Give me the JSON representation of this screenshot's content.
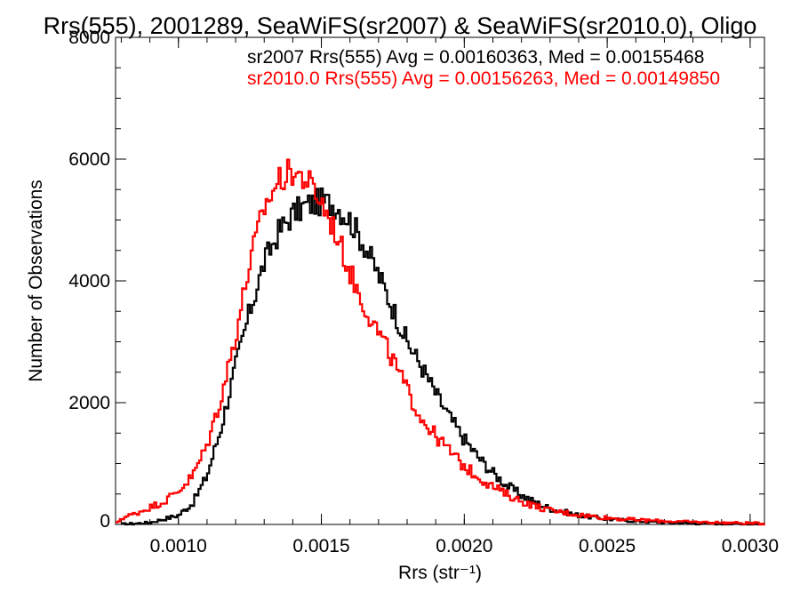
{
  "chart_data": {
    "type": "line",
    "title": "Rrs(555), 2001289, SeaWiFS(sr2007) & SeaWiFS(sr2010.0), Oligo",
    "xlabel": "Rrs (str⁻¹)",
    "ylabel": "Number of Observations",
    "xlim": [
      0.00078,
      0.00305
    ],
    "ylim": [
      0,
      8000
    ],
    "x_ticks": [
      {
        "value": 0.001,
        "label": "0.0010"
      },
      {
        "value": 0.0015,
        "label": "0.0015"
      },
      {
        "value": 0.002,
        "label": "0.0020"
      },
      {
        "value": 0.0025,
        "label": "0.0025"
      },
      {
        "value": 0.003,
        "label": "0.0030"
      }
    ],
    "y_ticks": [
      {
        "value": 0,
        "label": "0"
      },
      {
        "value": 2000,
        "label": "2000"
      },
      {
        "value": 4000,
        "label": "4000"
      },
      {
        "value": 6000,
        "label": "6000"
      },
      {
        "value": 8000,
        "label": "8000"
      }
    ],
    "grid": false,
    "legend_position": "top-right",
    "series": [
      {
        "name": "sr2007 Rrs(555) Avg = 0.00160363, Med = 0.00155468",
        "color": "#000000",
        "points": [
          [
            0.0008,
            0
          ],
          [
            0.0009,
            30
          ],
          [
            0.001,
            150
          ],
          [
            0.00105,
            350
          ],
          [
            0.0011,
            800
          ],
          [
            0.00115,
            1600
          ],
          [
            0.0012,
            2600
          ],
          [
            0.00125,
            3500
          ],
          [
            0.0013,
            4300
          ],
          [
            0.00135,
            4800
          ],
          [
            0.0014,
            5100
          ],
          [
            0.00145,
            5250
          ],
          [
            0.0015,
            5300
          ],
          [
            0.00155,
            5250
          ],
          [
            0.0016,
            5000
          ],
          [
            0.00165,
            4600
          ],
          [
            0.0017,
            4100
          ],
          [
            0.00175,
            3550
          ],
          [
            0.0018,
            3000
          ],
          [
            0.00185,
            2600
          ],
          [
            0.0019,
            2150
          ],
          [
            0.00195,
            1750
          ],
          [
            0.002,
            1400
          ],
          [
            0.00205,
            1100
          ],
          [
            0.0021,
            850
          ],
          [
            0.00215,
            640
          ],
          [
            0.0022,
            480
          ],
          [
            0.00225,
            360
          ],
          [
            0.0023,
            260
          ],
          [
            0.0024,
            150
          ],
          [
            0.0025,
            90
          ],
          [
            0.0026,
            55
          ],
          [
            0.0027,
            35
          ],
          [
            0.0028,
            20
          ],
          [
            0.0029,
            12
          ],
          [
            0.003,
            5
          ],
          [
            0.00305,
            3
          ]
        ]
      },
      {
        "name": "sr2010.0 Rrs(555) Avg = 0.00156263, Med = 0.00149850",
        "color": "#ff0000",
        "points": [
          [
            0.00078,
            0
          ],
          [
            0.0008,
            100
          ],
          [
            0.00085,
            180
          ],
          [
            0.0009,
            280
          ],
          [
            0.00095,
            380
          ],
          [
            0.001,
            550
          ],
          [
            0.00105,
            800
          ],
          [
            0.0011,
            1300
          ],
          [
            0.00115,
            2100
          ],
          [
            0.0012,
            3100
          ],
          [
            0.00125,
            4300
          ],
          [
            0.0013,
            5200
          ],
          [
            0.00135,
            5650
          ],
          [
            0.0014,
            5800
          ],
          [
            0.00145,
            5650
          ],
          [
            0.0015,
            5300
          ],
          [
            0.00155,
            4800
          ],
          [
            0.0016,
            4150
          ],
          [
            0.00165,
            3600
          ],
          [
            0.0017,
            3150
          ],
          [
            0.00175,
            2700
          ],
          [
            0.0018,
            2200
          ],
          [
            0.00185,
            1750
          ],
          [
            0.0019,
            1450
          ],
          [
            0.00195,
            1200
          ],
          [
            0.002,
            950
          ],
          [
            0.00205,
            780
          ],
          [
            0.0021,
            620
          ],
          [
            0.00215,
            490
          ],
          [
            0.0022,
            380
          ],
          [
            0.00225,
            300
          ],
          [
            0.0023,
            230
          ],
          [
            0.0024,
            160
          ],
          [
            0.0025,
            110
          ],
          [
            0.0026,
            75
          ],
          [
            0.0027,
            55
          ],
          [
            0.0028,
            40
          ],
          [
            0.0029,
            30
          ],
          [
            0.003,
            20
          ],
          [
            0.00305,
            15
          ]
        ]
      }
    ]
  }
}
